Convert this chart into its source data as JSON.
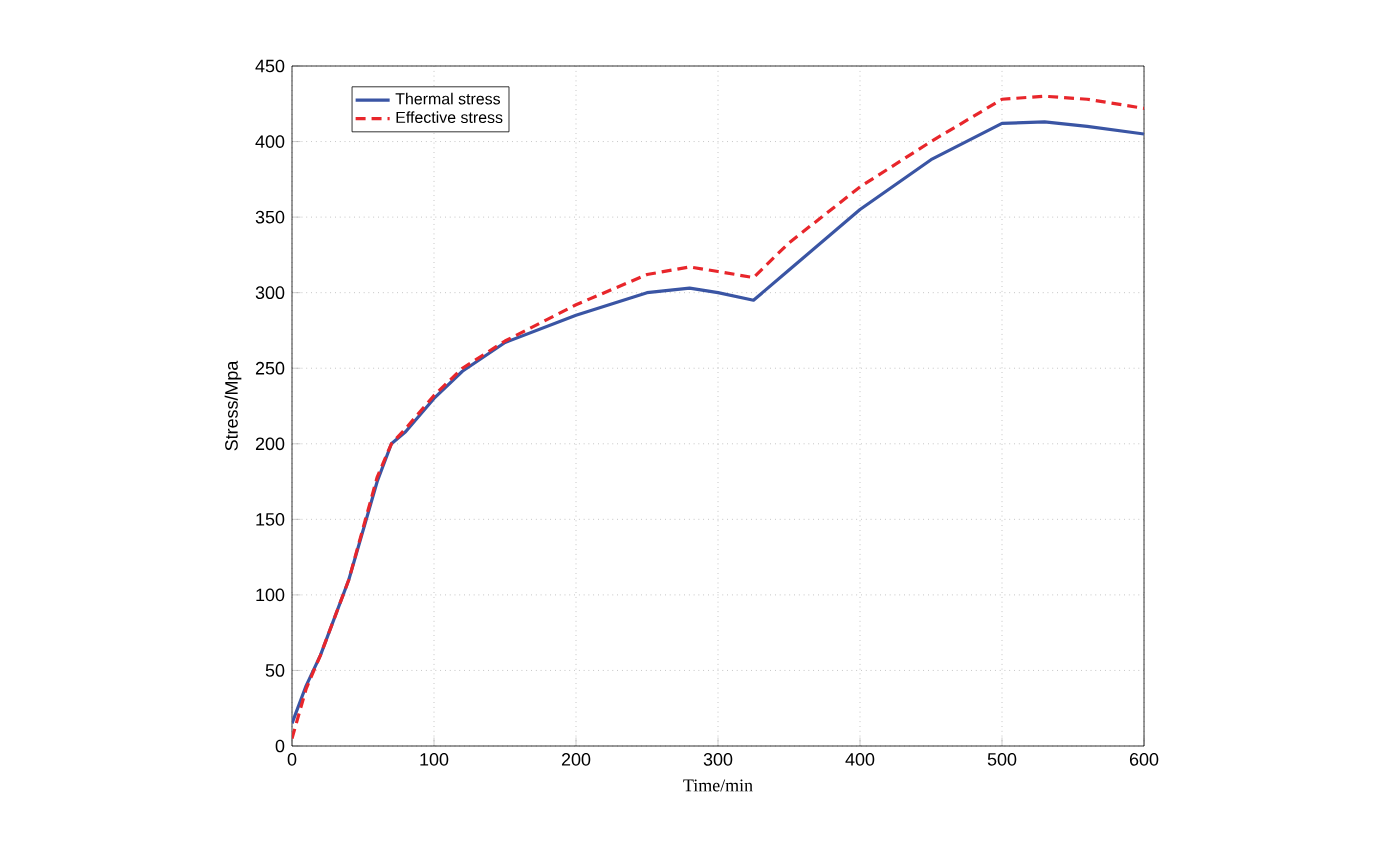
{
  "chart_data": {
    "type": "line",
    "xlabel": "Time/min",
    "ylabel": "Stress/Mpa",
    "xlim": [
      0,
      600
    ],
    "ylim": [
      0,
      450
    ],
    "xticks": [
      0,
      100,
      200,
      300,
      400,
      500,
      600
    ],
    "yticks": [
      0,
      50,
      100,
      150,
      200,
      250,
      300,
      350,
      400,
      450
    ],
    "grid": true,
    "legend": "top left",
    "series": [
      {
        "name": "Thermal stress",
        "color": "#3a55a4",
        "line_style": "solid",
        "x": [
          0,
          10,
          20,
          40,
          60,
          70,
          80,
          100,
          120,
          150,
          200,
          250,
          280,
          300,
          325,
          350,
          400,
          450,
          500,
          530,
          560,
          600
        ],
        "values": [
          15,
          40,
          60,
          110,
          175,
          200,
          208,
          230,
          248,
          267,
          285,
          300,
          303,
          300,
          295,
          315,
          355,
          388,
          412,
          413,
          410,
          405
        ]
      },
      {
        "name": "Effective stress",
        "color": "#e8262b",
        "line_style": "dashed",
        "x": [
          0,
          10,
          20,
          40,
          60,
          70,
          80,
          100,
          120,
          150,
          200,
          250,
          280,
          300,
          325,
          350,
          400,
          450,
          500,
          530,
          560,
          600
        ],
        "values": [
          5,
          38,
          60,
          110,
          178,
          200,
          210,
          232,
          250,
          268,
          292,
          312,
          317,
          314,
          310,
          333,
          370,
          400,
          428,
          430,
          428,
          422
        ]
      }
    ]
  }
}
